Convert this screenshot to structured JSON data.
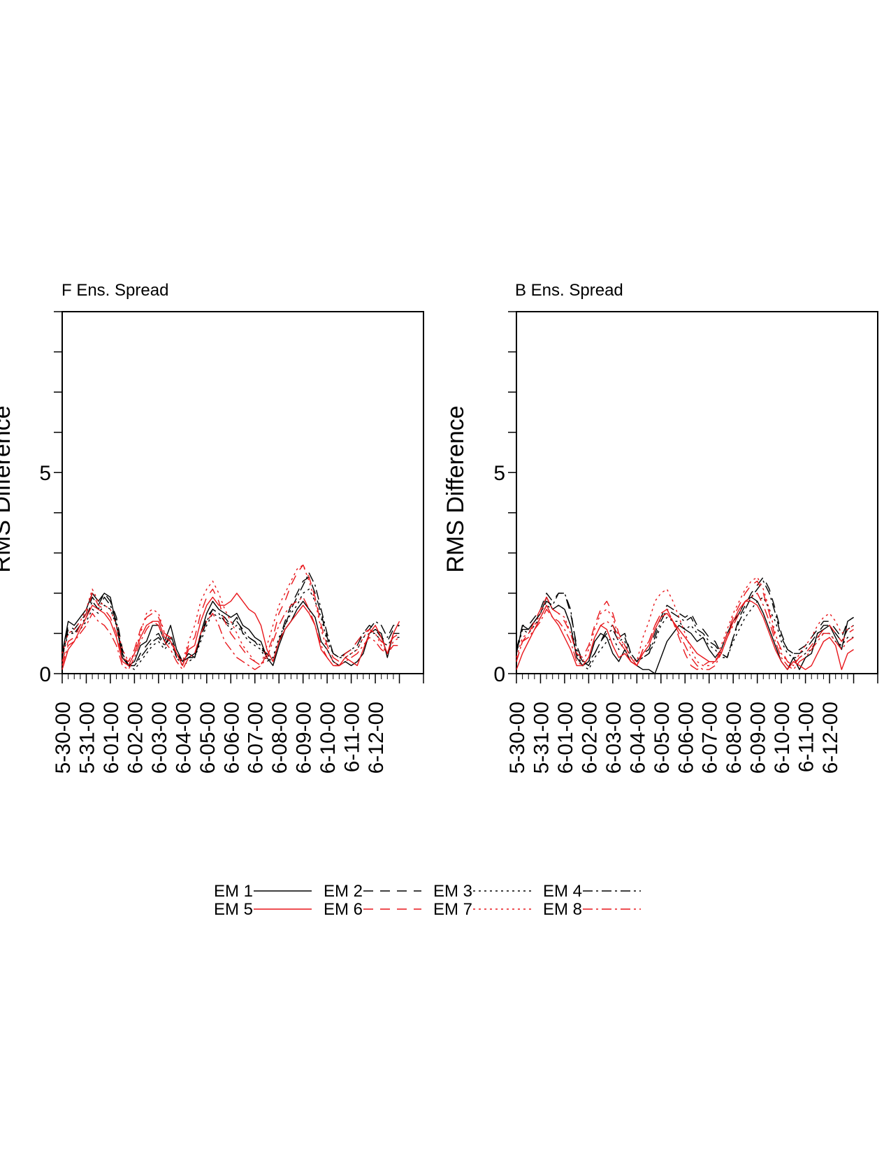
{
  "colors": {
    "black": "#000000",
    "red": "#e8161b"
  },
  "legend": [
    {
      "label": "EM 1",
      "color": "black",
      "dash": "solid"
    },
    {
      "label": "EM 2",
      "color": "black",
      "dash": "dash"
    },
    {
      "label": "EM 3",
      "color": "black",
      "dash": "dot"
    },
    {
      "label": "EM 4",
      "color": "black",
      "dash": "dashdot"
    },
    {
      "label": "EM 5",
      "color": "red",
      "dash": "solid"
    },
    {
      "label": "EM 6",
      "color": "red",
      "dash": "dash"
    },
    {
      "label": "EM 7",
      "color": "red",
      "dash": "dot"
    },
    {
      "label": "EM 8",
      "color": "red",
      "dash": "dashdot"
    }
  ],
  "chart_data": [
    {
      "type": "line",
      "title": "F Ens. Spread",
      "ylabel": "RMS Difference",
      "ylim": [
        0,
        9
      ],
      "yticks": [
        0,
        5
      ],
      "xlim": [
        0,
        15
      ],
      "xtick_labels": [
        "5-30-00",
        "5-31-00",
        "6-01-00",
        "6-02-00",
        "6-03-00",
        "6-04-00",
        "6-05-00",
        "6-06-00",
        "6-07-00",
        "6-08-00",
        "6-09-00",
        "6-10-00",
        "6-11-00",
        "6-12-00"
      ],
      "x_step": 0.25,
      "series": [
        {
          "name": "EM 1",
          "values": [
            0.5,
            1.3,
            1.2,
            1.4,
            1.6,
            2.0,
            1.8,
            2.0,
            1.9,
            1.2,
            0.4,
            0.2,
            0.3,
            0.7,
            0.8,
            1.2,
            1.2,
            0.8,
            1.2,
            0.6,
            0.3,
            0.5,
            0.4,
            1.0,
            1.5,
            1.8,
            1.6,
            1.5,
            1.4,
            1.5,
            1.2,
            1.1,
            0.9,
            0.8,
            0.4,
            0.2,
            0.7,
            1.1,
            1.3,
            1.6,
            1.8,
            1.6,
            1.4,
            0.8,
            0.6,
            0.3,
            0.2,
            0.3,
            0.2,
            0.3,
            0.5,
            1.0,
            1.1,
            1.0,
            0.4,
            1.0,
            1.0
          ]
        },
        {
          "name": "EM 2",
          "values": [
            0.5,
            1.2,
            1.1,
            1.3,
            1.5,
            1.9,
            1.7,
            2.0,
            1.8,
            1.4,
            0.6,
            0.2,
            0.2,
            0.5,
            0.7,
            0.9,
            1.0,
            0.7,
            1.0,
            0.5,
            0.3,
            0.4,
            0.5,
            0.9,
            1.4,
            1.6,
            1.5,
            1.4,
            1.2,
            1.4,
            1.0,
            0.9,
            0.8,
            0.6,
            0.5,
            0.3,
            0.8,
            1.3,
            1.7,
            2.0,
            2.3,
            2.4,
            2.0,
            1.5,
            0.9,
            0.5,
            0.4,
            0.5,
            0.6,
            0.8,
            1.0,
            1.2,
            1.1,
            0.9,
            0.8,
            1.1,
            1.2
          ]
        },
        {
          "name": "EM 3",
          "values": [
            0.4,
            1.0,
            1.0,
            1.1,
            1.3,
            1.6,
            1.5,
            1.7,
            1.6,
            1.2,
            0.5,
            0.2,
            0.1,
            0.3,
            0.5,
            0.7,
            0.8,
            0.6,
            0.8,
            0.4,
            0.2,
            0.3,
            0.4,
            0.8,
            1.2,
            1.5,
            1.4,
            1.3,
            1.1,
            1.2,
            1.0,
            0.8,
            0.7,
            0.6,
            0.3,
            0.4,
            0.9,
            1.2,
            1.5,
            1.7,
            2.0,
            2.1,
            1.8,
            1.4,
            0.8,
            0.5,
            0.4,
            0.4,
            0.5,
            0.6,
            0.9,
            1.0,
            1.0,
            0.8,
            0.7,
            0.9,
            0.9
          ]
        },
        {
          "name": "EM 4",
          "values": [
            0.4,
            1.1,
            1.0,
            1.2,
            1.4,
            1.8,
            1.6,
            1.9,
            1.7,
            1.3,
            0.5,
            0.2,
            0.2,
            0.4,
            0.6,
            0.8,
            0.9,
            0.7,
            0.9,
            0.4,
            0.3,
            0.4,
            0.4,
            0.9,
            1.3,
            1.6,
            1.5,
            1.3,
            1.2,
            1.3,
            1.1,
            0.9,
            0.8,
            0.7,
            0.4,
            0.3,
            0.8,
            1.2,
            1.6,
            1.9,
            2.2,
            2.5,
            2.2,
            1.6,
            1.0,
            0.5,
            0.4,
            0.5,
            0.6,
            0.7,
            1.0,
            1.1,
            1.3,
            1.2,
            0.9,
            1.2,
            1.2
          ]
        },
        {
          "name": "EM 5",
          "values": [
            0.1,
            0.6,
            0.8,
            1.1,
            1.4,
            1.7,
            1.6,
            1.5,
            1.3,
            0.9,
            0.3,
            0.2,
            0.5,
            0.9,
            1.2,
            1.3,
            1.3,
            0.9,
            0.8,
            0.5,
            0.2,
            0.6,
            0.7,
            1.3,
            1.7,
            1.9,
            1.7,
            1.7,
            1.8,
            2.0,
            1.8,
            1.6,
            1.5,
            1.2,
            0.6,
            0.3,
            0.8,
            1.1,
            1.3,
            1.5,
            1.7,
            1.5,
            1.2,
            0.6,
            0.4,
            0.2,
            0.2,
            0.4,
            0.3,
            0.2,
            0.6,
            1.0,
            1.2,
            0.9,
            0.5,
            1.0,
            1.3
          ]
        },
        {
          "name": "EM 6",
          "values": [
            0.3,
            0.8,
            0.9,
            1.2,
            1.5,
            2.0,
            1.7,
            1.6,
            1.4,
            1.0,
            0.4,
            0.3,
            0.6,
            1.1,
            1.4,
            1.5,
            1.4,
            1.0,
            0.9,
            0.5,
            0.2,
            0.7,
            0.9,
            1.5,
            1.9,
            2.1,
            1.8,
            1.3,
            1.0,
            0.8,
            0.6,
            0.4,
            0.3,
            0.2,
            0.5,
            0.9,
            1.5,
            1.8,
            2.2,
            2.5,
            2.7,
            2.4,
            1.9,
            1.2,
            0.7,
            0.4,
            0.3,
            0.5,
            0.6,
            0.8,
            1.0,
            1.1,
            1.0,
            0.8,
            0.7,
            0.9,
            1.0
          ]
        },
        {
          "name": "EM 7",
          "values": [
            0.5,
            1.0,
            1.1,
            1.3,
            1.6,
            2.1,
            1.8,
            1.7,
            1.6,
            1.2,
            0.6,
            0.3,
            0.5,
            1.0,
            1.5,
            1.6,
            1.5,
            1.0,
            0.8,
            0.5,
            0.3,
            0.8,
            1.2,
            1.8,
            2.1,
            2.3,
            2.0,
            1.6,
            1.3,
            1.0,
            0.7,
            0.5,
            0.3,
            0.2,
            0.7,
            1.2,
            1.7,
            2.0,
            2.3,
            2.6,
            2.7,
            2.3,
            1.8,
            1.1,
            0.6,
            0.3,
            0.2,
            0.4,
            0.5,
            0.6,
            0.9,
            1.1,
            1.0,
            0.7,
            0.5,
            0.8,
            0.9
          ]
        },
        {
          "name": "EM 8",
          "values": [
            0.2,
            0.7,
            0.8,
            1.0,
            1.2,
            1.5,
            1.3,
            1.2,
            1.0,
            0.7,
            0.2,
            0.1,
            0.4,
            0.8,
            1.1,
            1.3,
            1.2,
            0.8,
            0.6,
            0.3,
            0.1,
            0.4,
            0.5,
            1.0,
            1.3,
            1.5,
            1.2,
            0.8,
            0.6,
            0.4,
            0.3,
            0.2,
            0.1,
            0.2,
            0.4,
            0.8,
            1.2,
            1.5,
            1.7,
            1.8,
            1.9,
            1.6,
            1.2,
            0.7,
            0.4,
            0.2,
            0.2,
            0.3,
            0.4,
            0.5,
            0.7,
            0.9,
            0.8,
            0.6,
            0.5,
            0.7,
            0.7
          ]
        }
      ]
    },
    {
      "type": "line",
      "title": "B Ens. Spread",
      "ylabel": "RMS Difference",
      "ylim": [
        0,
        9
      ],
      "yticks": [
        0,
        5
      ],
      "xlim": [
        0,
        15
      ],
      "xtick_labels": [
        "5-30-00",
        "5-31-00",
        "6-01-00",
        "6-02-00",
        "6-03-00",
        "6-04-00",
        "6-05-00",
        "6-06-00",
        "6-07-00",
        "6-08-00",
        "6-09-00",
        "6-10-00",
        "6-11-00",
        "6-12-00"
      ],
      "x_step": 0.25,
      "series": [
        {
          "name": "EM 1",
          "values": [
            0.5,
            1.2,
            1.1,
            1.3,
            1.5,
            1.9,
            1.6,
            1.7,
            1.6,
            1.2,
            0.4,
            0.2,
            0.3,
            0.8,
            1.0,
            0.9,
            0.5,
            0.3,
            0.6,
            0.3,
            0.2,
            0.1,
            0.1,
            0.0,
            0.4,
            0.8,
            1.0,
            1.2,
            1.1,
            1.0,
            0.8,
            0.9,
            0.6,
            0.4,
            0.6,
            1.0,
            1.3,
            1.5,
            1.8,
            1.9,
            1.8,
            1.5,
            1.1,
            0.7,
            0.3,
            0.1,
            0.4,
            0.1,
            0.4,
            0.5,
            1.0,
            1.1,
            1.2,
            0.9,
            0.6,
            1.3,
            1.4
          ]
        },
        {
          "name": "EM 2",
          "values": [
            0.6,
            1.2,
            1.2,
            1.4,
            1.6,
            2.0,
            1.8,
            2.0,
            2.0,
            1.5,
            0.7,
            0.3,
            0.2,
            0.5,
            0.8,
            1.1,
            1.2,
            0.9,
            1.0,
            0.5,
            0.3,
            0.5,
            0.6,
            1.0,
            1.4,
            1.7,
            1.6,
            1.5,
            1.4,
            1.5,
            1.2,
            1.1,
            0.9,
            0.8,
            0.5,
            0.4,
            0.9,
            1.4,
            1.7,
            2.0,
            2.2,
            2.4,
            2.1,
            1.6,
            1.0,
            0.6,
            0.5,
            0.6,
            0.7,
            0.9,
            1.1,
            1.3,
            1.3,
            1.1,
            0.9,
            1.3,
            1.4
          ]
        },
        {
          "name": "EM 3",
          "values": [
            0.5,
            1.1,
            1.0,
            1.2,
            1.4,
            1.7,
            1.6,
            1.7,
            1.6,
            1.2,
            0.5,
            0.2,
            0.1,
            0.4,
            0.6,
            0.8,
            0.9,
            0.6,
            0.8,
            0.4,
            0.3,
            0.4,
            0.5,
            0.8,
            1.2,
            1.4,
            1.3,
            1.3,
            1.1,
            1.2,
            1.0,
            0.9,
            0.7,
            0.6,
            0.4,
            0.4,
            0.8,
            1.1,
            1.4,
            1.6,
            1.8,
            1.9,
            1.6,
            1.3,
            0.8,
            0.5,
            0.4,
            0.4,
            0.5,
            0.6,
            0.9,
            1.0,
            1.0,
            0.8,
            0.7,
            0.9,
            0.9
          ]
        },
        {
          "name": "EM 4",
          "values": [
            0.6,
            1.1,
            1.1,
            1.3,
            1.5,
            1.8,
            1.7,
            2.0,
            2.0,
            1.6,
            0.6,
            0.3,
            0.3,
            0.5,
            0.8,
            1.0,
            1.1,
            0.8,
            0.9,
            0.5,
            0.3,
            0.4,
            0.5,
            0.9,
            1.3,
            1.6,
            1.5,
            1.4,
            1.3,
            1.4,
            1.1,
            1.0,
            0.8,
            0.7,
            0.5,
            0.4,
            0.9,
            1.3,
            1.6,
            1.9,
            2.1,
            2.3,
            2.0,
            1.5,
            0.9,
            0.6,
            0.5,
            0.5,
            0.6,
            0.8,
            1.0,
            1.2,
            1.2,
            1.0,
            0.8,
            1.1,
            1.2
          ]
        },
        {
          "name": "EM 5",
          "values": [
            0.1,
            0.5,
            0.8,
            1.1,
            1.4,
            1.7,
            1.4,
            1.2,
            0.9,
            0.6,
            0.2,
            0.2,
            0.4,
            0.9,
            1.2,
            1.1,
            0.7,
            0.4,
            0.5,
            0.3,
            0.2,
            0.5,
            0.7,
            1.1,
            1.4,
            1.5,
            1.3,
            1.1,
            0.9,
            0.7,
            0.5,
            0.4,
            0.3,
            0.3,
            0.5,
            0.9,
            1.3,
            1.6,
            1.8,
            1.8,
            1.7,
            1.4,
            1.0,
            0.6,
            0.3,
            0.1,
            0.3,
            0.2,
            0.1,
            0.2,
            0.5,
            0.8,
            0.9,
            0.7,
            0.1,
            0.5,
            0.6
          ]
        },
        {
          "name": "EM 6",
          "values": [
            0.3,
            0.8,
            1.0,
            1.3,
            1.6,
            1.9,
            1.6,
            1.5,
            1.3,
            1.0,
            0.5,
            0.4,
            0.7,
            1.2,
            1.6,
            1.8,
            1.5,
            1.0,
            0.7,
            0.4,
            0.2,
            0.6,
            0.8,
            1.2,
            1.5,
            1.6,
            1.3,
            0.9,
            0.5,
            0.2,
            0.1,
            0.2,
            0.3,
            0.3,
            0.6,
            1.0,
            1.4,
            1.7,
            2.0,
            2.2,
            2.3,
            2.0,
            1.5,
            0.9,
            0.6,
            0.3,
            0.2,
            0.4,
            0.5,
            0.7,
            0.9,
            1.1,
            1.2,
            1.0,
            0.8,
            1.0,
            1.1
          ]
        },
        {
          "name": "EM 7",
          "values": [
            0.4,
            0.9,
            1.0,
            1.2,
            1.5,
            1.9,
            1.6,
            1.5,
            1.4,
            1.0,
            0.5,
            0.3,
            0.6,
            1.1,
            1.5,
            1.6,
            1.4,
            0.9,
            0.7,
            0.4,
            0.3,
            0.9,
            1.3,
            1.8,
            2.0,
            2.1,
            1.8,
            1.4,
            1.0,
            0.6,
            0.3,
            0.2,
            0.2,
            0.3,
            0.7,
            1.1,
            1.5,
            1.8,
            2.1,
            2.3,
            2.4,
            2.1,
            1.6,
            1.0,
            0.5,
            0.3,
            0.2,
            0.5,
            0.7,
            0.9,
            1.2,
            1.4,
            1.5,
            1.3,
            1.0,
            1.1,
            1.2
          ]
        },
        {
          "name": "EM 8",
          "values": [
            0.3,
            0.8,
            0.9,
            1.1,
            1.3,
            1.6,
            1.4,
            1.3,
            1.1,
            0.8,
            0.3,
            0.2,
            0.4,
            0.9,
            1.2,
            1.3,
            1.2,
            0.8,
            0.6,
            0.3,
            0.2,
            0.6,
            0.8,
            1.2,
            1.5,
            1.6,
            1.3,
            1.0,
            0.7,
            0.4,
            0.2,
            0.1,
            0.1,
            0.2,
            0.5,
            0.9,
            1.2,
            1.5,
            1.8,
            1.9,
            2.0,
            1.7,
            1.3,
            0.8,
            0.4,
            0.2,
            0.1,
            0.3,
            0.4,
            0.6,
            0.8,
            1.0,
            1.0,
            0.8,
            0.6,
            0.8,
            0.9
          ]
        }
      ]
    }
  ]
}
